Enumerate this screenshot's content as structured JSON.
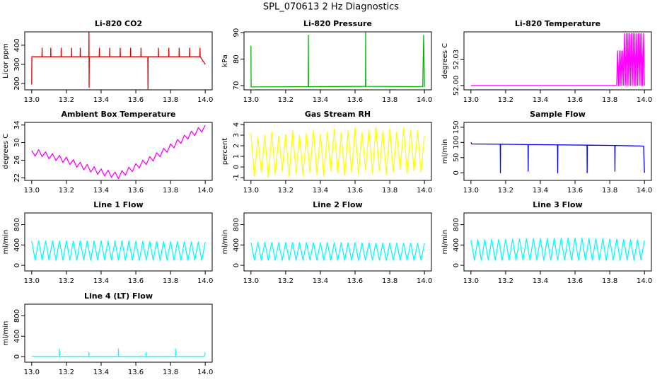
{
  "title": "SPL_070613  2 Hz Diagnostics",
  "chart_data": [
    {
      "type": "line",
      "title": "Li-820 CO2",
      "ylabel": "Licor ppm",
      "color": "#e00000",
      "xlim": [
        12.96,
        14.04
      ],
      "xticks": [
        {
          "value": 13,
          "label": "13.0"
        },
        {
          "value": 13.2,
          "label": "13.2"
        },
        {
          "value": 13.4,
          "label": "13.4"
        },
        {
          "value": 13.6,
          "label": "13.6"
        },
        {
          "value": 13.8,
          "label": "13.8"
        },
        {
          "value": 14,
          "label": "14.0"
        }
      ],
      "ylim": [
        167,
        470
      ],
      "yticks": [
        200,
        300,
        400
      ],
      "x": [
        13.0,
        13.001,
        13.059,
        13.06,
        13.061,
        13.109,
        13.11,
        13.111,
        13.169,
        13.17,
        13.171,
        13.229,
        13.23,
        13.231,
        13.279,
        13.28,
        13.281,
        13.329,
        13.33,
        13.331,
        13.332,
        13.389,
        13.39,
        13.391,
        13.449,
        13.45,
        13.451,
        13.509,
        13.51,
        13.511,
        13.569,
        13.57,
        13.571,
        13.629,
        13.63,
        13.631,
        13.669,
        13.67,
        13.671,
        13.729,
        13.73,
        13.731,
        13.789,
        13.79,
        13.791,
        13.849,
        13.85,
        13.851,
        13.909,
        13.91,
        13.911,
        13.969,
        13.97,
        13.971,
        14.0
      ],
      "values": [
        195,
        340,
        340,
        385,
        340,
        340,
        385,
        340,
        340,
        385,
        340,
        340,
        385,
        340,
        340,
        385,
        340,
        340,
        470,
        180,
        340,
        340,
        385,
        340,
        340,
        385,
        340,
        340,
        385,
        340,
        340,
        385,
        340,
        340,
        385,
        340,
        340,
        172,
        340,
        340,
        385,
        340,
        340,
        385,
        340,
        340,
        385,
        340,
        340,
        385,
        340,
        340,
        385,
        340,
        300
      ]
    },
    {
      "type": "line",
      "title": "Li-820 Pressure",
      "ylabel": "kPa",
      "color": "#00b400",
      "xlim": [
        12.96,
        14.04
      ],
      "xticks": [
        {
          "value": 13,
          "label": "13.0"
        },
        {
          "value": 13.2,
          "label": "13.2"
        },
        {
          "value": 13.4,
          "label": "13.4"
        },
        {
          "value": 13.6,
          "label": "13.6"
        },
        {
          "value": 13.8,
          "label": "13.8"
        },
        {
          "value": 14,
          "label": "14.0"
        }
      ],
      "ylim": [
        68.4,
        90.3
      ],
      "yticks": [
        70,
        80,
        90
      ],
      "x": [
        13.0,
        13.0005,
        13.001,
        13.33,
        13.331,
        13.332,
        13.66,
        13.661,
        13.662,
        13.99,
        13.995,
        14.0
      ],
      "values": [
        85,
        77,
        69.5,
        69.6,
        89,
        69.6,
        69.7,
        90,
        69.7,
        69.6,
        89,
        69.5
      ]
    },
    {
      "type": "line",
      "title": "Li-820 Temperature",
      "ylabel": "degrees C",
      "color": "#ff00ff",
      "xlim": [
        12.96,
        14.04
      ],
      "xticks": [
        {
          "value": 13,
          "label": "13.0"
        },
        {
          "value": 13.2,
          "label": "13.2"
        },
        {
          "value": 13.4,
          "label": "13.4"
        },
        {
          "value": 13.6,
          "label": "13.6"
        },
        {
          "value": 13.8,
          "label": "13.8"
        },
        {
          "value": 14,
          "label": "14.0"
        }
      ],
      "ylim": [
        51.995,
        52.062
      ],
      "yticks": [
        {
          "value": 52,
          "label": "52.00"
        },
        {
          "value": 52.03,
          "label": "52.03"
        }
      ],
      "x": [
        13.0,
        13.84,
        13.845,
        13.85,
        13.855,
        13.86,
        13.865,
        13.87,
        13.875,
        13.88,
        13.885,
        13.89,
        13.895,
        13.9,
        13.905,
        13.91,
        13.915,
        13.92,
        13.925,
        13.93,
        13.935,
        13.94,
        13.945,
        13.95,
        13.955,
        13.96,
        13.965,
        13.97,
        13.975,
        13.98,
        13.985,
        13.99,
        13.995,
        14.0
      ],
      "values": [
        52,
        52,
        52.04,
        52,
        52.04,
        52,
        52.04,
        52,
        52.04,
        52,
        52.06,
        52,
        52.06,
        52,
        52.06,
        52,
        52.06,
        52,
        52.06,
        52,
        52.06,
        52,
        52.06,
        52,
        52.06,
        52,
        52.06,
        52,
        52.06,
        52,
        52.06,
        52,
        52.06,
        52
      ]
    },
    {
      "type": "line",
      "title": "Ambient Box Temperature",
      "ylabel": "degrees C",
      "color": "#ff00ff",
      "xlim": [
        12.96,
        14.04
      ],
      "xticks": [
        {
          "value": 13,
          "label": "13.0"
        },
        {
          "value": 13.2,
          "label": "13.2"
        },
        {
          "value": 13.4,
          "label": "13.4"
        },
        {
          "value": 13.6,
          "label": "13.6"
        },
        {
          "value": 13.8,
          "label": "13.8"
        },
        {
          "value": 14,
          "label": "14.0"
        }
      ],
      "ylim": [
        21.4,
        34.6
      ],
      "yticks": [
        22,
        26,
        30,
        34
      ],
      "x": [
        13.0,
        13.02,
        13.04,
        13.06,
        13.08,
        13.1,
        13.12,
        13.14,
        13.16,
        13.18,
        13.2,
        13.22,
        13.24,
        13.26,
        13.28,
        13.3,
        13.32,
        13.34,
        13.36,
        13.38,
        13.4,
        13.42,
        13.44,
        13.46,
        13.48,
        13.5,
        13.52,
        13.54,
        13.56,
        13.58,
        13.6,
        13.62,
        13.64,
        13.66,
        13.68,
        13.7,
        13.72,
        13.74,
        13.76,
        13.78,
        13.8,
        13.82,
        13.84,
        13.86,
        13.88,
        13.9,
        13.92,
        13.94,
        13.96,
        13.98,
        14.0
      ],
      "values": [
        28.2,
        26.9,
        28.4,
        26.8,
        27.9,
        26.3,
        27.5,
        25.9,
        27.1,
        25.5,
        26.7,
        25.0,
        26.1,
        24.4,
        25.5,
        23.8,
        25.0,
        23.3,
        24.5,
        22.8,
        24.0,
        22.4,
        23.7,
        22.1,
        23.3,
        21.8,
        23.6,
        22.6,
        24.4,
        23.4,
        25.2,
        24.2,
        26.0,
        25.0,
        26.8,
        25.8,
        27.7,
        26.8,
        28.7,
        27.8,
        29.7,
        28.8,
        30.7,
        29.8,
        31.7,
        30.8,
        32.6,
        31.6,
        33.4,
        32.4,
        34.0
      ]
    },
    {
      "type": "line",
      "title": "Gas Stream RH",
      "ylabel": "percent",
      "color": "#ffff00",
      "xlim": [
        12.96,
        14.04
      ],
      "xticks": [
        {
          "value": 13,
          "label": "13.0"
        },
        {
          "value": 13.2,
          "label": "13.2"
        },
        {
          "value": 13.4,
          "label": "13.4"
        },
        {
          "value": 13.6,
          "label": "13.6"
        },
        {
          "value": 13.8,
          "label": "13.8"
        },
        {
          "value": 14,
          "label": "14.0"
        }
      ],
      "ylim": [
        -1.26,
        4.2
      ],
      "yticks": [
        -1,
        0,
        1,
        2,
        3,
        4
      ],
      "x": [
        13.0,
        13.02,
        13.04,
        13.06,
        13.08,
        13.1,
        13.12,
        13.14,
        13.16,
        13.18,
        13.2,
        13.22,
        13.24,
        13.26,
        13.28,
        13.3,
        13.32,
        13.34,
        13.36,
        13.38,
        13.4,
        13.42,
        13.44,
        13.46,
        13.48,
        13.5,
        13.52,
        13.54,
        13.56,
        13.58,
        13.6,
        13.62,
        13.64,
        13.66,
        13.68,
        13.7,
        13.72,
        13.74,
        13.76,
        13.78,
        13.8,
        13.82,
        13.84,
        13.86,
        13.88,
        13.9,
        13.92,
        13.94,
        13.96,
        13.98,
        14.0
      ],
      "values": [
        3.2,
        -0.9,
        2.8,
        -0.5,
        3.0,
        -1.0,
        3.3,
        -0.7,
        2.9,
        -0.4,
        3.1,
        -0.9,
        3.4,
        -0.6,
        3.0,
        -0.8,
        3.2,
        -0.5,
        3.5,
        -0.7,
        3.1,
        -0.9,
        3.3,
        -0.4,
        3.6,
        -0.6,
        3.2,
        -0.8,
        3.4,
        -0.5,
        3.7,
        -0.7,
        3.3,
        -0.3,
        3.5,
        -0.6,
        3.8,
        -0.4,
        3.4,
        -0.7,
        3.6,
        -0.5,
        3.3,
        -0.2,
        3.7,
        -0.6,
        3.5,
        -0.4,
        3.4,
        -0.5,
        3.0
      ]
    },
    {
      "type": "line",
      "title": "Sample Flow",
      "ylabel": "ml/min",
      "color": "#0000ff",
      "xlim": [
        12.96,
        14.04
      ],
      "xticks": [
        {
          "value": 13,
          "label": "13.0"
        },
        {
          "value": 13.2,
          "label": "13.2"
        },
        {
          "value": 13.4,
          "label": "13.4"
        },
        {
          "value": 13.6,
          "label": "13.6"
        },
        {
          "value": 13.8,
          "label": "13.8"
        },
        {
          "value": 14,
          "label": "14.0"
        }
      ],
      "ylim": [
        -25,
        166
      ],
      "yticks": [
        0,
        50,
        100,
        150
      ],
      "x": [
        13.0,
        13.005,
        13.169,
        13.17,
        13.171,
        13.329,
        13.33,
        13.331,
        13.499,
        13.5,
        13.501,
        13.669,
        13.67,
        13.671,
        13.829,
        13.83,
        13.831,
        13.995,
        14.0
      ],
      "values": [
        100,
        95,
        94,
        0,
        94,
        93,
        5,
        93,
        92,
        0,
        92,
        91,
        0,
        91,
        90,
        5,
        90,
        88,
        0
      ]
    },
    {
      "type": "line",
      "title": "Line 1 Flow",
      "ylabel": "ml/min",
      "color": "#00ffff",
      "xlim": [
        12.96,
        14.04
      ],
      "xticks": [
        {
          "value": 13,
          "label": "13.0"
        },
        {
          "value": 13.2,
          "label": "13.2"
        },
        {
          "value": 13.4,
          "label": "13.4"
        },
        {
          "value": 13.6,
          "label": "13.6"
        },
        {
          "value": 13.8,
          "label": "13.8"
        },
        {
          "value": 14,
          "label": "14.0"
        }
      ],
      "ylim": [
        -110,
        1030
      ],
      "yticks": [
        0,
        400,
        800
      ],
      "x": [
        13.0,
        13.02,
        13.04,
        13.06,
        13.08,
        13.1,
        13.12,
        13.14,
        13.16,
        13.18,
        13.2,
        13.22,
        13.24,
        13.26,
        13.28,
        13.3,
        13.32,
        13.34,
        13.36,
        13.38,
        13.4,
        13.42,
        13.44,
        13.46,
        13.48,
        13.5,
        13.52,
        13.54,
        13.56,
        13.58,
        13.6,
        13.62,
        13.64,
        13.66,
        13.68,
        13.7,
        13.72,
        13.74,
        13.76,
        13.78,
        13.8,
        13.82,
        13.84,
        13.86,
        13.88,
        13.9,
        13.92,
        13.94,
        13.96,
        13.98,
        14.0
      ],
      "values": [
        480,
        100,
        485,
        105,
        480,
        100,
        482,
        98,
        478,
        100,
        484,
        102,
        480,
        100,
        486,
        100,
        482,
        96,
        480,
        100,
        484,
        104,
        480,
        100,
        478,
        100,
        482,
        98,
        480,
        100,
        476,
        96,
        474,
        100,
        472,
        100,
        470,
        94,
        468,
        96,
        470,
        100,
        468,
        98,
        466,
        96,
        464,
        100,
        462,
        98,
        460
      ]
    },
    {
      "type": "line",
      "title": "Line 2 Flow",
      "ylabel": "ml/min",
      "color": "#00ffff",
      "xlim": [
        12.96,
        14.04
      ],
      "xticks": [
        {
          "value": 13,
          "label": "13.0"
        },
        {
          "value": 13.2,
          "label": "13.2"
        },
        {
          "value": 13.4,
          "label": "13.4"
        },
        {
          "value": 13.6,
          "label": "13.6"
        },
        {
          "value": 13.8,
          "label": "13.8"
        },
        {
          "value": 14,
          "label": "14.0"
        }
      ],
      "ylim": [
        -110,
        1030
      ],
      "yticks": [
        0,
        400,
        800
      ],
      "x": [
        13.0,
        13.02,
        13.04,
        13.06,
        13.08,
        13.1,
        13.12,
        13.14,
        13.16,
        13.18,
        13.2,
        13.22,
        13.24,
        13.26,
        13.28,
        13.3,
        13.32,
        13.34,
        13.36,
        13.38,
        13.4,
        13.42,
        13.44,
        13.46,
        13.48,
        13.5,
        13.52,
        13.54,
        13.56,
        13.58,
        13.6,
        13.62,
        13.64,
        13.66,
        13.68,
        13.7,
        13.72,
        13.74,
        13.76,
        13.78,
        13.8,
        13.82,
        13.84,
        13.86,
        13.88,
        13.9,
        13.92,
        13.94,
        13.96,
        13.98,
        14.0
      ],
      "values": [
        450,
        100,
        455,
        98,
        452,
        102,
        450,
        100,
        448,
        96,
        452,
        100,
        450,
        98,
        446,
        100,
        450,
        102,
        448,
        100,
        446,
        96,
        448,
        100,
        444,
        98,
        446,
        100,
        442,
        100,
        444,
        96,
        440,
        100,
        442,
        98,
        438,
        100,
        440,
        96,
        436,
        100,
        438,
        98,
        434,
        100,
        436,
        96,
        432,
        100,
        430
      ]
    },
    {
      "type": "line",
      "title": "Line 3 Flow",
      "ylabel": "ml/min",
      "color": "#00ffff",
      "xlim": [
        12.96,
        14.04
      ],
      "xticks": [
        {
          "value": 13,
          "label": "13.0"
        },
        {
          "value": 13.2,
          "label": "13.2"
        },
        {
          "value": 13.4,
          "label": "13.4"
        },
        {
          "value": 13.6,
          "label": "13.6"
        },
        {
          "value": 13.8,
          "label": "13.8"
        },
        {
          "value": 14,
          "label": "14.0"
        }
      ],
      "ylim": [
        -110,
        1030
      ],
      "yticks": [
        0,
        400,
        800
      ],
      "x": [
        13.0,
        13.02,
        13.04,
        13.06,
        13.08,
        13.1,
        13.12,
        13.14,
        13.16,
        13.18,
        13.2,
        13.22,
        13.24,
        13.26,
        13.28,
        13.3,
        13.32,
        13.34,
        13.36,
        13.38,
        13.4,
        13.42,
        13.44,
        13.46,
        13.48,
        13.5,
        13.52,
        13.54,
        13.56,
        13.58,
        13.6,
        13.62,
        13.64,
        13.66,
        13.68,
        13.7,
        13.72,
        13.74,
        13.76,
        13.78,
        13.8,
        13.82,
        13.84,
        13.86,
        13.88,
        13.9,
        13.92,
        13.94,
        13.96,
        13.98,
        14.0
      ],
      "values": [
        500,
        100,
        505,
        98,
        508,
        102,
        510,
        100,
        512,
        96,
        515,
        100,
        518,
        98,
        520,
        100,
        522,
        102,
        525,
        100,
        528,
        96,
        530,
        100,
        532,
        98,
        535,
        100,
        536,
        100,
        534,
        96,
        532,
        100,
        530,
        98,
        528,
        100,
        525,
        96,
        520,
        100,
        516,
        98,
        512,
        100,
        508,
        96,
        505,
        100,
        490
      ]
    },
    {
      "type": "line",
      "title": "Line 4 (LT) Flow",
      "ylabel": "ml/min",
      "color": "#00ffff",
      "xlim": [
        12.96,
        14.04
      ],
      "xticks": [
        {
          "value": 13,
          "label": "13.0"
        },
        {
          "value": 13.2,
          "label": "13.2"
        },
        {
          "value": 13.4,
          "label": "13.4"
        },
        {
          "value": 13.6,
          "label": "13.6"
        },
        {
          "value": 13.8,
          "label": "13.8"
        },
        {
          "value": 14,
          "label": "14.0"
        }
      ],
      "ylim": [
        -110,
        1030
      ],
      "yticks": [
        0,
        400,
        800
      ],
      "x": [
        13.0,
        13.159,
        13.16,
        13.161,
        13.329,
        13.33,
        13.331,
        13.499,
        13.5,
        13.501,
        13.659,
        13.66,
        13.661,
        13.829,
        13.83,
        13.831,
        13.995,
        14.0
      ],
      "values": [
        5,
        5,
        150,
        5,
        5,
        80,
        5,
        5,
        150,
        5,
        5,
        80,
        5,
        5,
        150,
        5,
        5,
        80
      ]
    }
  ]
}
